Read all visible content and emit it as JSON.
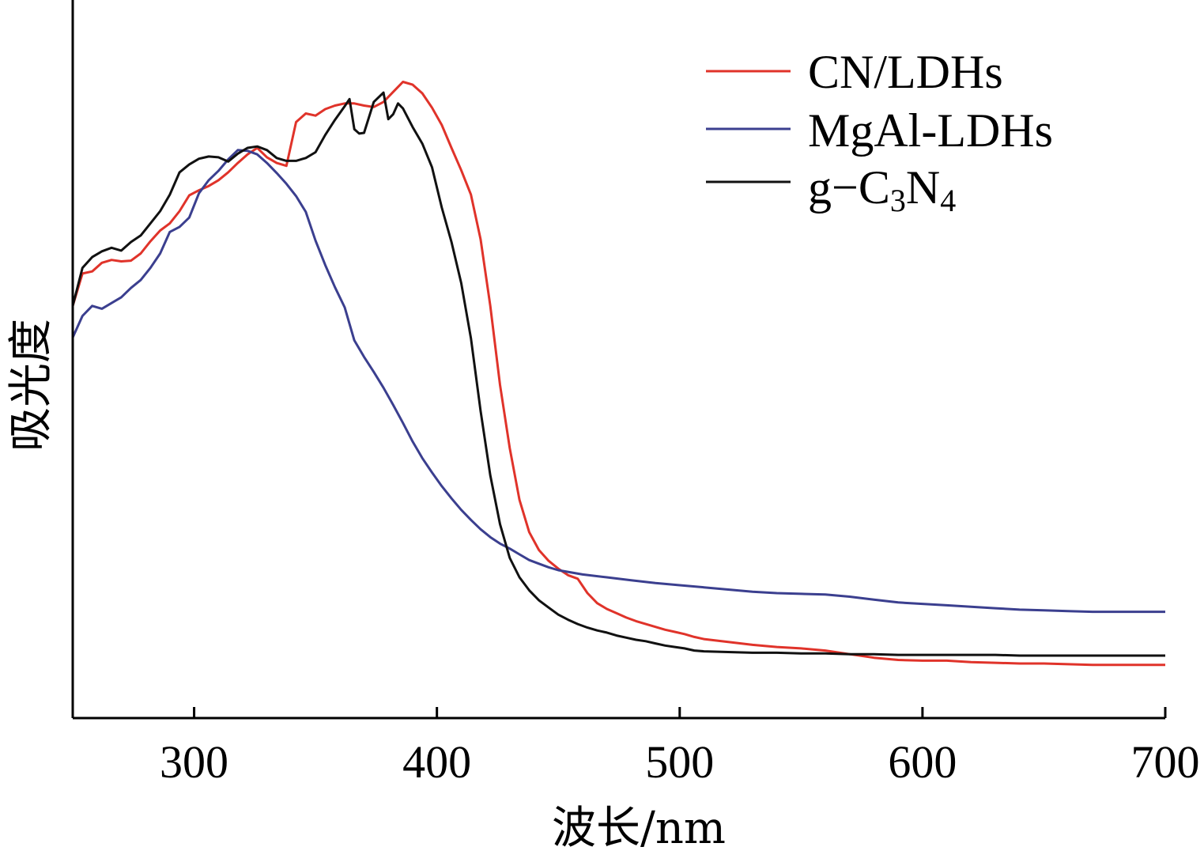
{
  "chart_data": {
    "type": "line",
    "title": "",
    "xlabel": "波长/nm",
    "ylabel": "吸光度",
    "xlim": [
      250,
      700
    ],
    "ylim": [
      0,
      1
    ],
    "x_ticks": [
      "300",
      "400",
      "500",
      "600",
      "700"
    ],
    "y_ticks": [],
    "grid": false,
    "legend_position": "top-right",
    "series": [
      {
        "name": "CN/LDHs",
        "color": "#e0332a",
        "x": [
          250,
          254,
          258,
          262,
          266,
          270,
          274,
          278,
          282,
          286,
          290,
          294,
          298,
          302,
          306,
          310,
          314,
          318,
          322,
          326,
          330,
          334,
          338,
          342,
          346,
          350,
          354,
          358,
          362,
          366,
          370,
          374,
          378,
          382,
          386,
          390,
          394,
          398,
          402,
          406,
          410,
          414,
          418,
          422,
          426,
          430,
          434,
          438,
          442,
          446,
          450,
          454,
          458,
          462,
          466,
          470,
          474,
          478,
          482,
          486,
          490,
          494,
          498,
          502,
          506,
          510,
          520,
          530,
          540,
          550,
          560,
          570,
          580,
          590,
          600,
          610,
          620,
          630,
          640,
          650,
          660,
          670,
          680,
          690,
          700
        ],
        "y": [
          0.574,
          0.619,
          0.622,
          0.634,
          0.638,
          0.636,
          0.637,
          0.647,
          0.664,
          0.679,
          0.689,
          0.706,
          0.728,
          0.735,
          0.741,
          0.749,
          0.76,
          0.773,
          0.785,
          0.794,
          0.781,
          0.773,
          0.769,
          0.83,
          0.842,
          0.839,
          0.848,
          0.853,
          0.856,
          0.856,
          0.853,
          0.851,
          0.858,
          0.872,
          0.886,
          0.882,
          0.87,
          0.85,
          0.826,
          0.794,
          0.763,
          0.729,
          0.667,
          0.574,
          0.464,
          0.376,
          0.304,
          0.259,
          0.234,
          0.219,
          0.208,
          0.199,
          0.194,
          0.174,
          0.16,
          0.152,
          0.146,
          0.14,
          0.135,
          0.131,
          0.127,
          0.123,
          0.12,
          0.117,
          0.113,
          0.11,
          0.106,
          0.102,
          0.099,
          0.097,
          0.094,
          0.089,
          0.084,
          0.081,
          0.08,
          0.08,
          0.078,
          0.077,
          0.076,
          0.076,
          0.075,
          0.074,
          0.074,
          0.074,
          0.074
        ]
      },
      {
        "name": "MgAl-LDHs",
        "color": "#3b3f8f",
        "x": [
          250,
          254,
          258,
          262,
          266,
          270,
          274,
          278,
          282,
          286,
          290,
          294,
          298,
          302,
          306,
          310,
          314,
          318,
          322,
          326,
          330,
          334,
          338,
          342,
          346,
          350,
          354,
          358,
          362,
          366,
          370,
          374,
          378,
          382,
          386,
          390,
          394,
          398,
          402,
          406,
          410,
          414,
          418,
          422,
          426,
          430,
          434,
          438,
          442,
          446,
          450,
          460,
          470,
          480,
          490,
          500,
          510,
          520,
          530,
          540,
          550,
          560,
          570,
          580,
          590,
          600,
          610,
          620,
          630,
          640,
          650,
          660,
          670,
          680,
          690,
          700
        ],
        "y": [
          0.53,
          0.56,
          0.574,
          0.57,
          0.578,
          0.586,
          0.599,
          0.61,
          0.627,
          0.647,
          0.677,
          0.684,
          0.697,
          0.731,
          0.749,
          0.762,
          0.778,
          0.791,
          0.79,
          0.785,
          0.773,
          0.759,
          0.744,
          0.727,
          0.705,
          0.665,
          0.631,
          0.6,
          0.572,
          0.526,
          0.503,
          0.482,
          0.46,
          0.436,
          0.411,
          0.385,
          0.362,
          0.342,
          0.323,
          0.306,
          0.29,
          0.276,
          0.263,
          0.252,
          0.243,
          0.236,
          0.228,
          0.22,
          0.215,
          0.21,
          0.206,
          0.2,
          0.196,
          0.192,
          0.188,
          0.185,
          0.182,
          0.179,
          0.176,
          0.174,
          0.173,
          0.172,
          0.169,
          0.165,
          0.161,
          0.159,
          0.157,
          0.155,
          0.153,
          0.151,
          0.15,
          0.149,
          0.148,
          0.148,
          0.148,
          0.148
        ]
      },
      {
        "name": "g-C3N4",
        "legend_main": "g−C",
        "legend_sub1": "3",
        "legend_mid": "N",
        "legend_sub2": "4",
        "color": "#111111",
        "x": [
          250,
          254,
          258,
          262,
          266,
          270,
          274,
          278,
          282,
          286,
          290,
          294,
          298,
          302,
          306,
          310,
          314,
          318,
          322,
          326,
          330,
          334,
          338,
          342,
          346,
          350,
          354,
          358,
          362,
          364,
          366,
          368,
          370,
          374,
          378,
          380,
          382,
          384,
          386,
          390,
          394,
          398,
          402,
          406,
          410,
          414,
          418,
          422,
          426,
          430,
          434,
          438,
          442,
          446,
          450,
          454,
          458,
          462,
          466,
          470,
          474,
          478,
          482,
          486,
          490,
          494,
          498,
          502,
          506,
          510,
          520,
          530,
          540,
          550,
          560,
          570,
          580,
          590,
          600,
          610,
          620,
          630,
          640,
          650,
          660,
          670,
          680,
          690,
          700
        ],
        "y": [
          0.574,
          0.627,
          0.642,
          0.65,
          0.655,
          0.651,
          0.663,
          0.672,
          0.689,
          0.706,
          0.729,
          0.76,
          0.771,
          0.779,
          0.782,
          0.781,
          0.775,
          0.786,
          0.794,
          0.796,
          0.791,
          0.78,
          0.776,
          0.776,
          0.78,
          0.788,
          0.812,
          0.833,
          0.852,
          0.862,
          0.82,
          0.814,
          0.815,
          0.858,
          0.871,
          0.834,
          0.841,
          0.856,
          0.849,
          0.823,
          0.8,
          0.767,
          0.711,
          0.663,
          0.606,
          0.529,
          0.428,
          0.338,
          0.27,
          0.223,
          0.196,
          0.178,
          0.164,
          0.154,
          0.144,
          0.137,
          0.131,
          0.126,
          0.122,
          0.119,
          0.115,
          0.112,
          0.109,
          0.107,
          0.104,
          0.101,
          0.099,
          0.097,
          0.094,
          0.093,
          0.092,
          0.091,
          0.091,
          0.09,
          0.09,
          0.089,
          0.089,
          0.088,
          0.088,
          0.088,
          0.088,
          0.088,
          0.087,
          0.087,
          0.087,
          0.087,
          0.087,
          0.087,
          0.087
        ]
      }
    ]
  }
}
